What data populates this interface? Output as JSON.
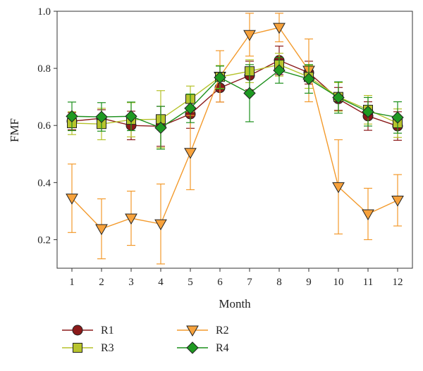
{
  "chart_data": {
    "type": "line",
    "title": "",
    "xlabel": "Month",
    "ylabel": "FMF",
    "x": [
      1,
      2,
      3,
      4,
      5,
      6,
      7,
      8,
      9,
      10,
      11,
      12
    ],
    "xlim": [
      0.5,
      12.5
    ],
    "ylim": [
      0.1,
      1.0
    ],
    "yticks": [
      0.2,
      0.4,
      0.6,
      0.8,
      1.0
    ],
    "ytick_labels": [
      "0.2",
      "0.4",
      "0.6",
      "0.8",
      "1.0"
    ],
    "xtick_labels": [
      "1",
      "2",
      "3",
      "4",
      "5",
      "6",
      "7",
      "8",
      "9",
      "10",
      "11",
      "12"
    ],
    "grid": false,
    "legend_position": "bottom",
    "series": [
      {
        "name": "R1",
        "marker": "circle",
        "line_color": "#8b1a1a",
        "fill_color": "#8b1a1a",
        "values": [
          0.615,
          0.625,
          0.6,
          0.597,
          0.64,
          0.732,
          0.775,
          0.828,
          0.785,
          0.693,
          0.633,
          0.598
        ],
        "errors": [
          0.03,
          0.03,
          0.05,
          0.07,
          0.05,
          0.05,
          0.05,
          0.05,
          0.04,
          0.04,
          0.05,
          0.05
        ]
      },
      {
        "name": "R2",
        "marker": "triangle-down",
        "line_color": "#f39a2c",
        "fill_color": "#f7a23c",
        "values": [
          0.345,
          0.238,
          0.275,
          0.255,
          0.505,
          0.772,
          0.918,
          0.943,
          0.793,
          0.385,
          0.29,
          0.338
        ],
        "errors": [
          0.12,
          0.105,
          0.095,
          0.14,
          0.13,
          0.09,
          0.075,
          0.05,
          0.11,
          0.165,
          0.09,
          0.09
        ]
      },
      {
        "name": "R3",
        "marker": "square",
        "line_color": "#b5c22a",
        "fill_color": "#b8c42d",
        "values": [
          0.608,
          0.605,
          0.62,
          0.622,
          0.693,
          0.77,
          0.79,
          0.813,
          0.77,
          0.7,
          0.655,
          0.608
        ],
        "errors": [
          0.04,
          0.055,
          0.06,
          0.1,
          0.045,
          0.04,
          0.04,
          0.04,
          0.04,
          0.05,
          0.05,
          0.05
        ]
      },
      {
        "name": "R4",
        "marker": "diamond",
        "line_color": "#1b8f1b",
        "fill_color": "#1f9a22",
        "values": [
          0.632,
          0.63,
          0.632,
          0.592,
          0.66,
          0.768,
          0.713,
          0.793,
          0.763,
          0.698,
          0.648,
          0.628
        ],
        "errors": [
          0.05,
          0.05,
          0.05,
          0.075,
          0.05,
          0.04,
          0.1,
          0.045,
          0.05,
          0.055,
          0.05,
          0.055
        ]
      }
    ],
    "legend": [
      {
        "name": "R1"
      },
      {
        "name": "R2"
      },
      {
        "name": "R3"
      },
      {
        "name": "R4"
      }
    ]
  }
}
